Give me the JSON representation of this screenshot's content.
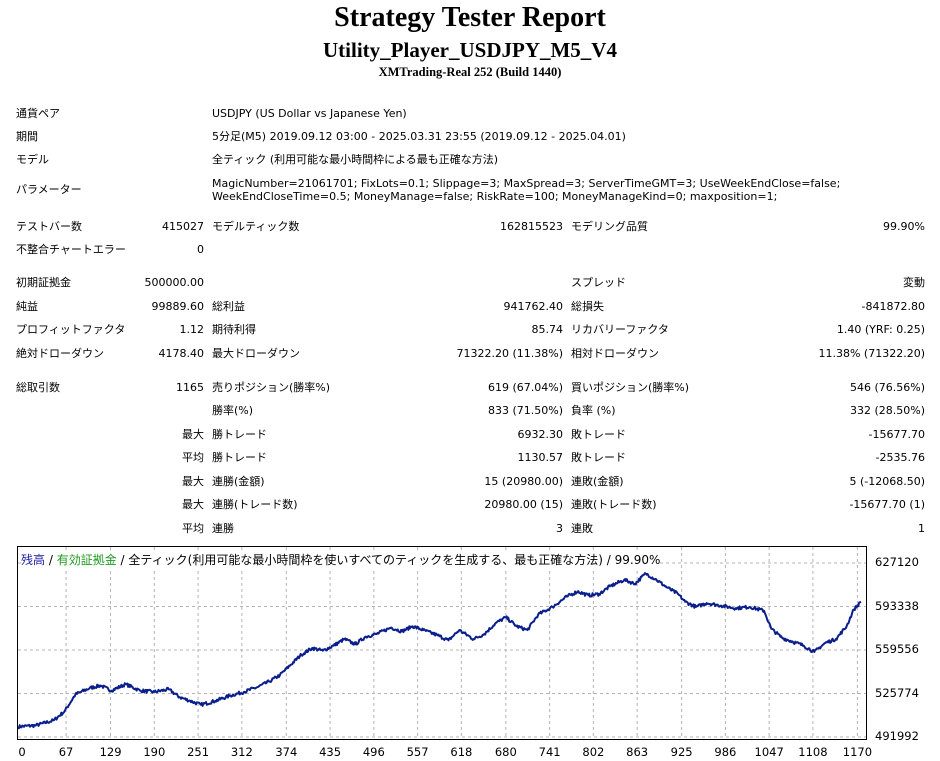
{
  "header": {
    "title": "Strategy Tester Report",
    "subtitle": "Utility_Player_USDJPY_M5_V4",
    "server": "XMTrading-Real 252 (Build 1440)"
  },
  "info": {
    "symbol_label": "通貨ペア",
    "symbol_value": "USDJPY (US Dollar vs Japanese Yen)",
    "period_label": "期間",
    "period_value": "5分足(M5) 2019.09.12 03:00 - 2025.03.31 23:55 (2019.09.12 - 2025.04.01)",
    "model_label": "モデル",
    "model_value": "全ティック (利用可能な最小時間枠による最も正確な方法)",
    "params_label": "パラメーター",
    "params_line1": "MagicNumber=21061701; FixLots=0.1; Slippage=3; MaxSpread=3; ServerTimeGMT=3; UseWeekEndClose=false;",
    "params_line2": "WeekEndCloseTime=0.5; MoneyManage=false; RiskRate=100; MoneyManageKind=0; maxposition=1;"
  },
  "stats": {
    "bars_label": "テストバー数",
    "bars_value": "415027",
    "ticks_label": "モデルティック数",
    "ticks_value": "162815523",
    "quality_label": "モデリング品質",
    "quality_value": "99.90%",
    "errors_label": "不整合チャートエラー",
    "errors_value": "0",
    "deposit_label": "初期証拠金",
    "deposit_value": "500000.00",
    "spread_label": "スプレッド",
    "spread_value": "変動",
    "net_label": "純益",
    "net_value": "99889.60",
    "gross_profit_label": "総利益",
    "gross_profit_value": "941762.40",
    "gross_loss_label": "総損失",
    "gross_loss_value": "-841872.80",
    "pf_label": "プロフィットファクタ",
    "pf_value": "1.12",
    "expected_label": "期待利得",
    "expected_value": "85.74",
    "recovery_label": "リカバリーファクタ",
    "recovery_value": "1.40 (YRF: 0.25)",
    "abs_dd_label": "絶対ドローダウン",
    "abs_dd_value": "4178.40",
    "max_dd_label": "最大ドローダウン",
    "max_dd_value": "71322.20 (11.38%)",
    "rel_dd_label": "相対ドローダウン",
    "rel_dd_value": "11.38% (71322.20)",
    "trades_label": "総取引数",
    "trades_value": "1165",
    "short_label": "売りポジション(勝率%)",
    "short_value": "619 (67.04%)",
    "long_label": "買いポジション(勝率%)",
    "long_value": "546 (76.56%)",
    "winrate_label": "勝率(%)",
    "winrate_value": "833 (71.50%)",
    "lossrate_label": "負率 (%)",
    "lossrate_value": "332 (28.50%)",
    "max_prefix": "最大",
    "avg_prefix": "平均",
    "largest_win_label": "勝トレード",
    "largest_win_value": "6932.30",
    "largest_loss_label": "敗トレード",
    "largest_loss_value": "-15677.70",
    "avg_win_label": "勝トレード",
    "avg_win_value": "1130.57",
    "avg_loss_label": "敗トレード",
    "avg_loss_value": "-2535.76",
    "max_consec_wins_label": "連勝(金額)",
    "max_consec_wins_value": "15 (20980.00)",
    "max_consec_losses_label": "連敗(金額)",
    "max_consec_losses_value": "5 (-12068.50)",
    "max_consec_profit_label": "連勝(トレード数)",
    "max_consec_profit_value": "20980.00 (15)",
    "max_consec_loss_label": "連敗(トレード数)",
    "max_consec_loss_value": "-15677.70 (1)",
    "avg_consec_wins_label": "連勝",
    "avg_consec_wins_value": "3",
    "avg_consec_losses_label": "連敗",
    "avg_consec_losses_value": "1"
  },
  "legend": {
    "balance": "残高",
    "sep1": " / ",
    "equity": "有効証拠金",
    "sep2": " / ",
    "rest": "全ティック(利用可能な最小時間枠を使いすべてのティックを生成する、最も正確な方法) / 99.90%"
  },
  "chart_data": {
    "type": "line",
    "series": [
      {
        "values": [
          [
            0,
            500000
          ],
          [
            25,
            501000
          ],
          [
            50,
            505000
          ],
          [
            65,
            512000
          ],
          [
            80,
            525000
          ],
          [
            100,
            530000
          ],
          [
            115,
            532000
          ],
          [
            130,
            528000
          ],
          [
            150,
            533000
          ],
          [
            170,
            528000
          ],
          [
            190,
            527000
          ],
          [
            210,
            529000
          ],
          [
            225,
            523000
          ],
          [
            240,
            520000
          ],
          [
            255,
            517000
          ],
          [
            275,
            520000
          ],
          [
            295,
            524000
          ],
          [
            315,
            527000
          ],
          [
            335,
            531000
          ],
          [
            350,
            535000
          ],
          [
            365,
            540000
          ],
          [
            380,
            548000
          ],
          [
            395,
            556000
          ],
          [
            410,
            561000
          ],
          [
            425,
            559000
          ],
          [
            440,
            563000
          ],
          [
            455,
            568000
          ],
          [
            470,
            564000
          ],
          [
            485,
            570000
          ],
          [
            500,
            572000
          ],
          [
            520,
            577000
          ],
          [
            535,
            574000
          ],
          [
            550,
            578000
          ],
          [
            565,
            575000
          ],
          [
            585,
            571000
          ],
          [
            600,
            567000
          ],
          [
            615,
            575000
          ],
          [
            635,
            568000
          ],
          [
            650,
            572000
          ],
          [
            665,
            580000
          ],
          [
            680,
            585000
          ],
          [
            695,
            578000
          ],
          [
            710,
            575000
          ],
          [
            725,
            587000
          ],
          [
            745,
            593000
          ],
          [
            765,
            601000
          ],
          [
            780,
            605000
          ],
          [
            795,
            602000
          ],
          [
            810,
            603000
          ],
          [
            825,
            609000
          ],
          [
            845,
            614000
          ],
          [
            860,
            611000
          ],
          [
            875,
            619000
          ],
          [
            890,
            614000
          ],
          [
            905,
            608000
          ],
          [
            920,
            603000
          ],
          [
            930,
            597000
          ],
          [
            945,
            593000
          ],
          [
            960,
            596000
          ],
          [
            980,
            594000
          ],
          [
            1000,
            592000
          ],
          [
            1020,
            593000
          ],
          [
            1040,
            590000
          ],
          [
            1050,
            576000
          ],
          [
            1065,
            569000
          ],
          [
            1080,
            566000
          ],
          [
            1095,
            563000
          ],
          [
            1110,
            558000
          ],
          [
            1125,
            565000
          ],
          [
            1140,
            568000
          ],
          [
            1155,
            578000
          ],
          [
            1165,
            591000
          ],
          [
            1175,
            597000
          ]
        ]
      }
    ],
    "y_ticks": [
      "627120",
      "593338",
      "559556",
      "525774",
      "491992"
    ],
    "x_ticks": [
      "0",
      "67",
      "129",
      "190",
      "251",
      "312",
      "374",
      "435",
      "496",
      "557",
      "618",
      "680",
      "741",
      "802",
      "863",
      "925",
      "986",
      "1047",
      "1108",
      "1170"
    ],
    "xlim": [
      0,
      1182
    ],
    "ylim": [
      491992,
      627120
    ],
    "grid": true,
    "line_color": "#0a1e8c",
    "grid_color": "#b4b4b4"
  }
}
